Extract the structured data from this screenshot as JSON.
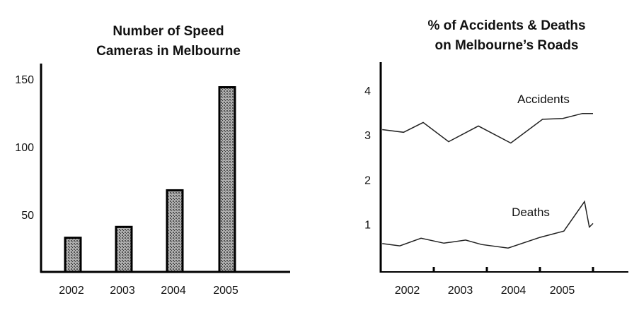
{
  "chart_data": [
    {
      "type": "bar",
      "title": [
        "Number of Speed",
        "Cameras in Melbourne"
      ],
      "categories": [
        "2002",
        "2003",
        "2004",
        "2005"
      ],
      "values": [
        33,
        41,
        68,
        144
      ],
      "yticks": [
        "50",
        "100",
        "150"
      ],
      "ytick_values": [
        50,
        100,
        150
      ],
      "xlabel": "",
      "ylabel": "",
      "ylim": [
        8,
        160
      ],
      "grid": false,
      "bar_color": "#8a8a8a"
    },
    {
      "type": "line",
      "title": [
        "% of Accidents & Deaths",
        "on Melbourne’s Roads"
      ],
      "xticks": [
        "2002",
        "2003",
        "2004",
        "2005"
      ],
      "xtick_positions": [
        2002.5,
        2003.5,
        2004.5,
        2005.42
      ],
      "yticks": [
        "1",
        "2",
        "3",
        "4"
      ],
      "ytick_values": [
        1,
        2,
        3,
        4
      ],
      "xlim": [
        2002,
        2006.6
      ],
      "ylim": [
        0,
        4.7
      ],
      "grid": false,
      "series": [
        {
          "name": "Accidents",
          "x": [
            2002.03,
            2002.43,
            2002.8,
            2003.28,
            2003.84,
            2004.45,
            2005.05,
            2005.43,
            2005.8,
            2006.0
          ],
          "y": [
            3.12,
            3.06,
            3.28,
            2.85,
            3.2,
            2.82,
            3.35,
            3.37,
            3.48,
            3.48
          ]
        },
        {
          "name": "Deaths",
          "x": [
            2002.03,
            2002.36,
            2002.76,
            2003.19,
            2003.6,
            2003.9,
            2004.4,
            2005.0,
            2005.45,
            2005.84,
            2005.93,
            2006.0
          ],
          "y": [
            0.57,
            0.52,
            0.69,
            0.58,
            0.65,
            0.55,
            0.47,
            0.71,
            0.85,
            1.51,
            0.94,
            1.02
          ]
        }
      ]
    }
  ]
}
